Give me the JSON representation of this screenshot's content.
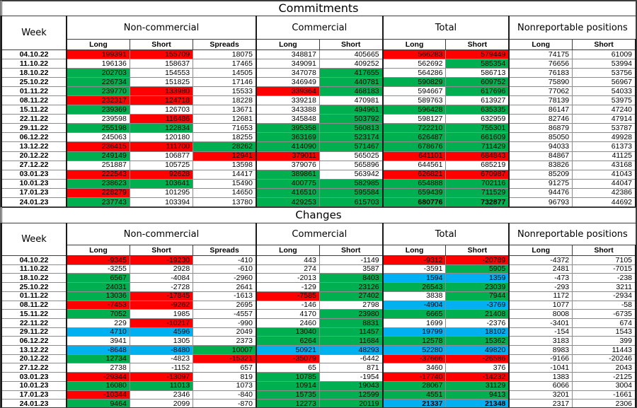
{
  "colors": {
    "r": "#ff0000",
    "g": "#00b050",
    "b": "#00b0f0",
    "w": "#ffffff"
  },
  "chart_data": [
    {
      "type": "table",
      "title": "Commitments",
      "week_header": "Week",
      "col_groups": [
        {
          "label": "Non-commercial",
          "span": 3
        },
        {
          "label": "Commercial",
          "span": 2
        },
        {
          "label": "Total",
          "span": 2
        },
        {
          "label": "Nonreportable positions",
          "span": 2
        }
      ],
      "sub_headers": [
        "Long",
        "Short",
        "Spreads",
        "Long",
        "Short",
        "Long",
        "Short",
        "Long",
        "Short"
      ],
      "weeks": [
        "04.10.22",
        "11.10.22",
        "18.10.22",
        "25.10.22",
        "01.11.22",
        "08.11.22",
        "15.11.22",
        "22.11.22",
        "29.11.22",
        "06.12.22",
        "13.12.22",
        "20.12.22",
        "27.12.22",
        "03.01.23",
        "10.01.23",
        "17.01.23",
        "24.01.23"
      ],
      "values": [
        [
          199391,
          155709,
          18075,
          348817,
          405665,
          566283,
          579449,
          74175,
          61009
        ],
        [
          196136,
          158637,
          17465,
          349091,
          409252,
          562692,
          585354,
          76656,
          53994
        ],
        [
          202703,
          154553,
          14505,
          347078,
          417655,
          564286,
          586713,
          76183,
          53756
        ],
        [
          226734,
          151825,
          17146,
          346949,
          440781,
          590829,
          609752,
          75890,
          56967
        ],
        [
          239770,
          133980,
          15533,
          339364,
          468183,
          594667,
          617696,
          77062,
          54033
        ],
        [
          232317,
          124718,
          18228,
          339218,
          470981,
          589763,
          613927,
          78139,
          53975
        ],
        [
          239369,
          126703,
          13671,
          343388,
          494961,
          596428,
          635335,
          86147,
          47240
        ],
        [
          239598,
          116486,
          12681,
          345848,
          503792,
          598127,
          632959,
          82746,
          47914
        ],
        [
          255198,
          122834,
          71653,
          395358,
          560813,
          722210,
          755301,
          86879,
          53787
        ],
        [
          245063,
          120180,
          18255,
          363169,
          523174,
          626487,
          661609,
          85050,
          49928
        ],
        [
          236415,
          111700,
          28262,
          414090,
          571467,
          678676,
          711429,
          94033,
          61373
        ],
        [
          249149,
          106877,
          12941,
          379011,
          565025,
          641101,
          684843,
          84867,
          41125
        ],
        [
          251887,
          105725,
          13598,
          379076,
          565896,
          644561,
          685219,
          83826,
          43168
        ],
        [
          222543,
          92628,
          14417,
          389861,
          563942,
          626821,
          670987,
          85209,
          41043
        ],
        [
          238623,
          103641,
          15490,
          400775,
          582985,
          654888,
          702116,
          91275,
          44047
        ],
        [
          228279,
          101295,
          14650,
          416510,
          595584,
          659439,
          711529,
          94476,
          42386
        ],
        [
          237743,
          103394,
          13780,
          429253,
          615703,
          680776,
          732877,
          96793,
          44692
        ]
      ],
      "cell_colors": [
        [
          "r",
          "r",
          "w",
          "w",
          "w",
          "r",
          "r",
          "w",
          "w"
        ],
        [
          "w",
          "w",
          "w",
          "w",
          "w",
          "w",
          "g",
          "w",
          "w"
        ],
        [
          "g",
          "w",
          "w",
          "w",
          "g",
          "w",
          "w",
          "w",
          "w"
        ],
        [
          "g",
          "w",
          "w",
          "w",
          "g",
          "g",
          "g",
          "w",
          "w"
        ],
        [
          "g",
          "r",
          "w",
          "r",
          "g",
          "w",
          "g",
          "w",
          "w"
        ],
        [
          "r",
          "r",
          "w",
          "w",
          "w",
          "w",
          "w",
          "w",
          "w"
        ],
        [
          "g",
          "w",
          "w",
          "w",
          "g",
          "g",
          "g",
          "w",
          "w"
        ],
        [
          "w",
          "r",
          "w",
          "w",
          "g",
          "w",
          "w",
          "w",
          "w"
        ],
        [
          "g",
          "g",
          "w",
          "g",
          "g",
          "g",
          "g",
          "w",
          "w"
        ],
        [
          "w",
          "w",
          "w",
          "g",
          "g",
          "g",
          "g",
          "w",
          "w"
        ],
        [
          "r",
          "r",
          "g",
          "g",
          "g",
          "g",
          "g",
          "w",
          "w"
        ],
        [
          "g",
          "w",
          "r",
          "r",
          "w",
          "r",
          "r",
          "w",
          "w"
        ],
        [
          "w",
          "w",
          "w",
          "w",
          "w",
          "w",
          "w",
          "w",
          "w"
        ],
        [
          "r",
          "r",
          "w",
          "g",
          "w",
          "r",
          "r",
          "w",
          "w"
        ],
        [
          "g",
          "g",
          "w",
          "g",
          "g",
          "g",
          "g",
          "w",
          "w"
        ],
        [
          "r",
          "w",
          "w",
          "g",
          "g",
          "g",
          "g",
          "w",
          "w"
        ],
        [
          "g",
          "w",
          "w",
          "g",
          "g",
          "g",
          "g",
          "w",
          "w"
        ]
      ],
      "bold_cells": [
        [
          16,
          5
        ],
        [
          16,
          6
        ]
      ]
    },
    {
      "type": "table",
      "title": "Changes",
      "week_header": "Week",
      "col_groups": [
        {
          "label": "Non-commercial",
          "span": 3
        },
        {
          "label": "Commercial",
          "span": 2
        },
        {
          "label": "Total",
          "span": 2
        },
        {
          "label": "Nonreportable positions",
          "span": 2
        }
      ],
      "sub_headers": [
        "Long",
        "Short",
        "Spreads",
        "Long",
        "Short",
        "Long",
        "Short",
        "Long",
        "Short"
      ],
      "weeks": [
        "04.10.22",
        "11.10.22",
        "18.10.22",
        "25.10.22",
        "01.11.22",
        "08.11.22",
        "15.11.22",
        "22.11.22",
        "29.11.22",
        "06.12.22",
        "13.12.22",
        "20.12.22",
        "27.12.22",
        "03.01.23",
        "10.01.23",
        "17.01.23",
        "24.01.23"
      ],
      "values": [
        [
          -9345,
          -19230,
          -410,
          443,
          -1149,
          -9312,
          -20789,
          -4372,
          7105
        ],
        [
          -3255,
          2928,
          -610,
          274,
          3587,
          -3591,
          5905,
          2481,
          -7015
        ],
        [
          6567,
          -4084,
          -2960,
          -2013,
          8403,
          1594,
          1359,
          -473,
          -238
        ],
        [
          24031,
          -2728,
          2641,
          -129,
          23126,
          26543,
          23039,
          -293,
          3211
        ],
        [
          13036,
          -17845,
          -1613,
          -7585,
          27402,
          3838,
          7944,
          1172,
          -2934
        ],
        [
          -7453,
          -9262,
          2695,
          -146,
          2798,
          -4904,
          -3769,
          1077,
          -58
        ],
        [
          7052,
          1985,
          -4557,
          4170,
          23980,
          6665,
          21408,
          8008,
          -6735
        ],
        [
          229,
          -10217,
          -990,
          2460,
          8831,
          1699,
          -2376,
          -3401,
          674
        ],
        [
          4710,
          4596,
          2049,
          13040,
          11457,
          19799,
          18102,
          -154,
          1543
        ],
        [
          3941,
          1305,
          2373,
          6264,
          11684,
          12578,
          15362,
          3183,
          399
        ],
        [
          -8648,
          -8480,
          10007,
          50921,
          48293,
          52280,
          49820,
          8983,
          11443
        ],
        [
          12734,
          -4823,
          -15321,
          -35079,
          -6442,
          -37666,
          -26586,
          -9166,
          -20246
        ],
        [
          2738,
          -1152,
          657,
          65,
          871,
          3460,
          376,
          -1041,
          2043
        ],
        [
          -29344,
          -13097,
          819,
          10785,
          -1954,
          -17740,
          -14232,
          1383,
          -2125
        ],
        [
          16080,
          11013,
          1073,
          10914,
          19043,
          28067,
          31129,
          6066,
          3004
        ],
        [
          -10344,
          2346,
          -840,
          15735,
          12599,
          4551,
          9413,
          3201,
          -1661
        ],
        [
          9464,
          2099,
          -870,
          12273,
          20119,
          21337,
          21348,
          2317,
          2306
        ]
      ],
      "cell_colors": [
        [
          "r",
          "r",
          "w",
          "w",
          "w",
          "r",
          "r",
          "w",
          "w"
        ],
        [
          "w",
          "w",
          "w",
          "w",
          "w",
          "w",
          "g",
          "w",
          "w"
        ],
        [
          "g",
          "w",
          "w",
          "w",
          "g",
          "b",
          "b",
          "w",
          "w"
        ],
        [
          "g",
          "w",
          "w",
          "w",
          "g",
          "g",
          "g",
          "w",
          "w"
        ],
        [
          "g",
          "r",
          "w",
          "r",
          "g",
          "w",
          "g",
          "w",
          "w"
        ],
        [
          "r",
          "r",
          "w",
          "w",
          "w",
          "b",
          "b",
          "w",
          "w"
        ],
        [
          "g",
          "w",
          "w",
          "w",
          "g",
          "g",
          "g",
          "w",
          "w"
        ],
        [
          "w",
          "r",
          "w",
          "w",
          "g",
          "w",
          "w",
          "w",
          "w"
        ],
        [
          "b",
          "b",
          "w",
          "g",
          "g",
          "b",
          "b",
          "w",
          "w"
        ],
        [
          "w",
          "w",
          "w",
          "g",
          "g",
          "g",
          "g",
          "w",
          "w"
        ],
        [
          "b",
          "b",
          "g",
          "b",
          "b",
          "b",
          "b",
          "w",
          "w"
        ],
        [
          "g",
          "w",
          "r",
          "r",
          "w",
          "r",
          "r",
          "w",
          "w"
        ],
        [
          "w",
          "w",
          "w",
          "w",
          "w",
          "w",
          "w",
          "w",
          "w"
        ],
        [
          "r",
          "r",
          "w",
          "g",
          "w",
          "r",
          "r",
          "w",
          "w"
        ],
        [
          "g",
          "g",
          "w",
          "g",
          "g",
          "g",
          "g",
          "w",
          "w"
        ],
        [
          "r",
          "w",
          "w",
          "g",
          "g",
          "g",
          "g",
          "w",
          "w"
        ],
        [
          "g",
          "w",
          "w",
          "g",
          "g",
          "b",
          "b",
          "w",
          "w"
        ]
      ],
      "bold_cells": [
        [
          16,
          5
        ],
        [
          16,
          6
        ]
      ]
    }
  ]
}
